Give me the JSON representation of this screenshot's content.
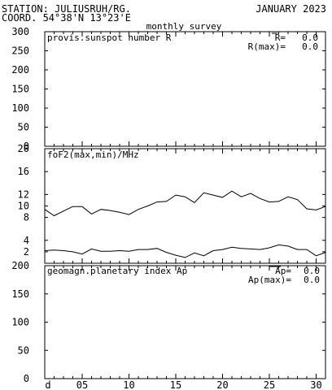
{
  "header": {
    "station": "STATION: JULIUSRUH/RG.",
    "coord": "COORD. 54°38'N 13°23'E",
    "date": "JANUARY 2023",
    "subtitle": "monthly survey"
  },
  "chart_data": [
    {
      "id": "sunspot",
      "type": "line",
      "title": "provis.sunspot number R",
      "ylim": [
        0,
        300
      ],
      "yticks": [
        0,
        50,
        100,
        150,
        200,
        250,
        300
      ],
      "xlim": [
        1,
        31
      ],
      "stats": [
        {
          "label": "R=",
          "overline": "R",
          "value": "0.0"
        },
        {
          "label": "R(max)=",
          "value": "0.0"
        }
      ],
      "series": []
    },
    {
      "id": "fof2",
      "type": "line",
      "title": "foF2(max,min)/MHz",
      "ylim": [
        0,
        20
      ],
      "yticks": [
        2,
        4,
        8,
        10,
        12,
        16,
        20
      ],
      "xlim": [
        1,
        31
      ],
      "series": [
        {
          "x": [
            1,
            2,
            3,
            4,
            5,
            6,
            7,
            8,
            9,
            10,
            11,
            12,
            13,
            14,
            15,
            16,
            17,
            18,
            19,
            20,
            21,
            22,
            23,
            24,
            25,
            26,
            27,
            28,
            29,
            30,
            31
          ],
          "values": [
            9.4,
            8.3,
            9.1,
            9.9,
            9.9,
            8.6,
            9.4,
            9.2,
            8.9,
            8.5,
            9.4,
            10.0,
            10.7,
            10.8,
            11.9,
            11.6,
            10.6,
            12.3,
            11.9,
            11.5,
            12.6,
            11.6,
            12.2,
            11.3,
            10.7,
            10.8,
            11.6,
            11.1,
            9.5,
            9.3,
            9.9
          ]
        },
        {
          "x": [
            1,
            2,
            3,
            4,
            5,
            6,
            7,
            8,
            9,
            10,
            11,
            12,
            13,
            14,
            15,
            16,
            17,
            18,
            19,
            20,
            21,
            22,
            23,
            24,
            25,
            26,
            27,
            28,
            29,
            30,
            31
          ],
          "values": [
            2.2,
            2.3,
            2.2,
            2.0,
            1.6,
            2.5,
            2.1,
            2.1,
            2.2,
            2.1,
            2.4,
            2.4,
            2.6,
            1.9,
            1.4,
            1.0,
            1.8,
            1.3,
            2.2,
            2.4,
            2.8,
            2.6,
            2.5,
            2.4,
            2.7,
            3.2,
            3.0,
            2.4,
            2.4,
            1.3,
            1.9
          ]
        }
      ]
    },
    {
      "id": "ap",
      "type": "line",
      "title": "geomagn.planetary index Ap",
      "ylim": [
        0,
        200
      ],
      "yticks": [
        0,
        50,
        100,
        150,
        200
      ],
      "xlim": [
        1,
        31
      ],
      "stats": [
        {
          "label": "Ap=",
          "overline": "Ap",
          "value": "0.0"
        },
        {
          "label": "Ap(max)=",
          "value": "0.0"
        }
      ],
      "series": []
    }
  ],
  "xaxis": {
    "tick_labels": [
      {
        "x": 1,
        "label": "d"
      },
      {
        "x": 5,
        "label": "05"
      },
      {
        "x": 10,
        "label": "10"
      },
      {
        "x": 15,
        "label": "15"
      },
      {
        "x": 20,
        "label": "20"
      },
      {
        "x": 25,
        "label": "25"
      },
      {
        "x": 30,
        "label": "30"
      }
    ]
  }
}
